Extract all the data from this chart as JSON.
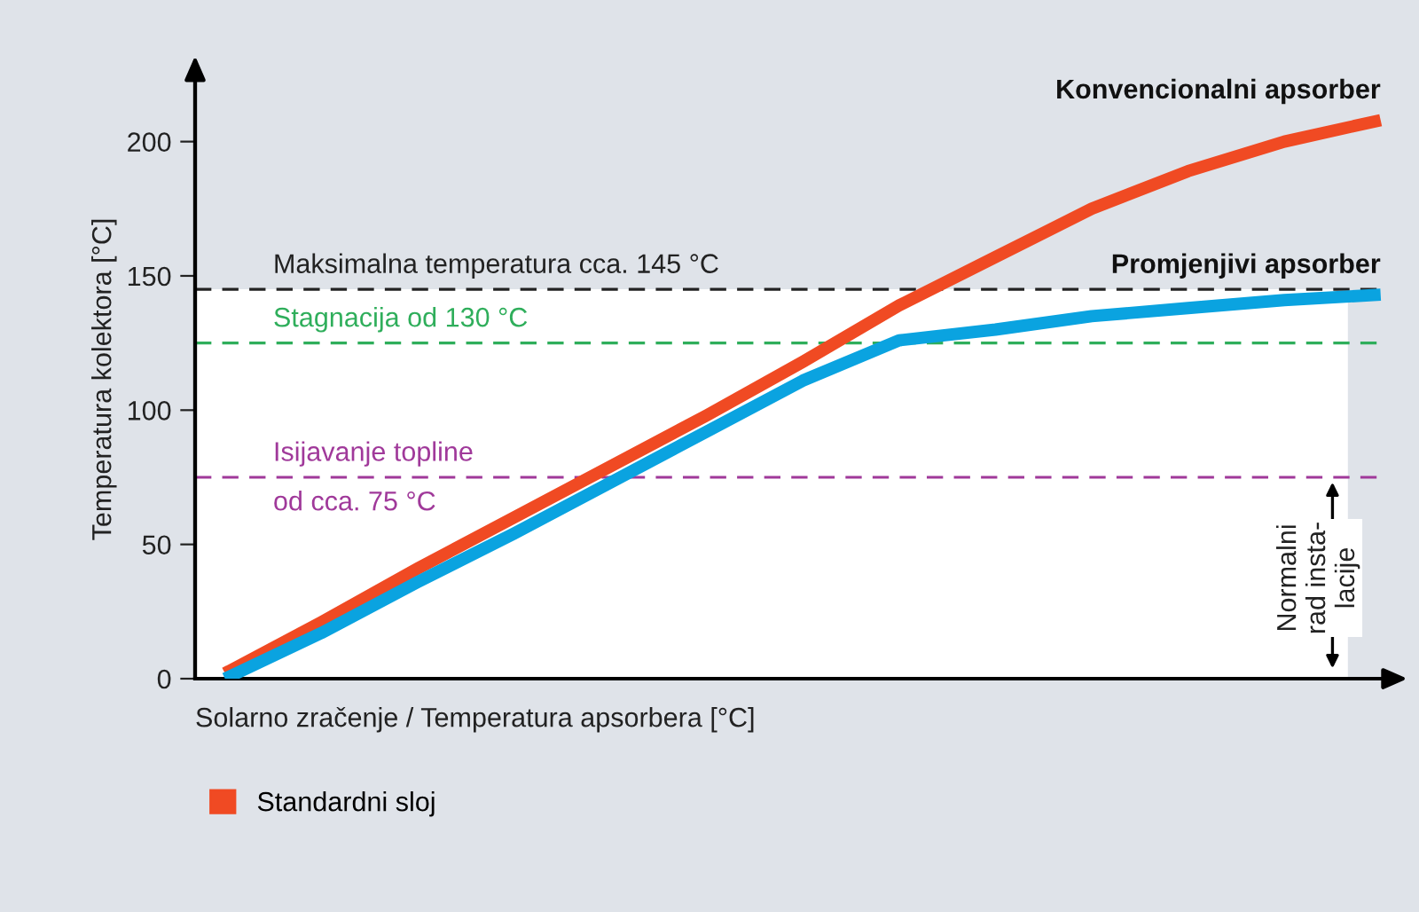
{
  "chart_data": {
    "type": "line",
    "xlabel": "Solarno zračenje / Temperatura apsorbera [°C]",
    "ylabel": "Temperatura kolektora [°C]",
    "categories": [
      null,
      null,
      null,
      null,
      null,
      null,
      null,
      null,
      null,
      null,
      null,
      null,
      null
    ],
    "series": [
      {
        "name": "Standardni sloj",
        "color": "#f04a23",
        "values": [
          2,
          21,
          41,
          60,
          79,
          98,
          118,
          139,
          157,
          175,
          189,
          200,
          208
        ]
      },
      {
        "color": "#0aa3e0",
        "values": [
          0,
          17,
          36,
          54,
          73,
          92,
          111,
          126,
          130,
          135,
          138,
          141,
          143
        ]
      }
    ],
    "ylim": [
      0,
      223
    ],
    "yticks": [
      0,
      50,
      100,
      150,
      200
    ],
    "grid": false,
    "legend": "bottom left",
    "marker": "none",
    "line_style": "solid",
    "ref_lines": [
      {
        "axis": "y",
        "value": 145,
        "label": "Maksimalna temperatura cca. 145 °C",
        "color": "#222222",
        "line_style": "dashed"
      },
      {
        "axis": "y",
        "value": 125,
        "label": "Stagnacija od 130 °C",
        "color": "#2fae5b",
        "line_style": "dashed"
      },
      {
        "axis": "y",
        "value": 75,
        "label": "Isijavanje topline\nod cca. 75 °C",
        "color": "#a0399a",
        "line_style": "dashed"
      }
    ],
    "bands": [
      {
        "axis": "y",
        "from": 0,
        "to": 145,
        "color": "#ffffff"
      }
    ],
    "annotations": [
      "Konvencionalni apsorber",
      "Promjenjivi apsorber",
      "Normalni\nrad insta-\nlacije"
    ]
  }
}
